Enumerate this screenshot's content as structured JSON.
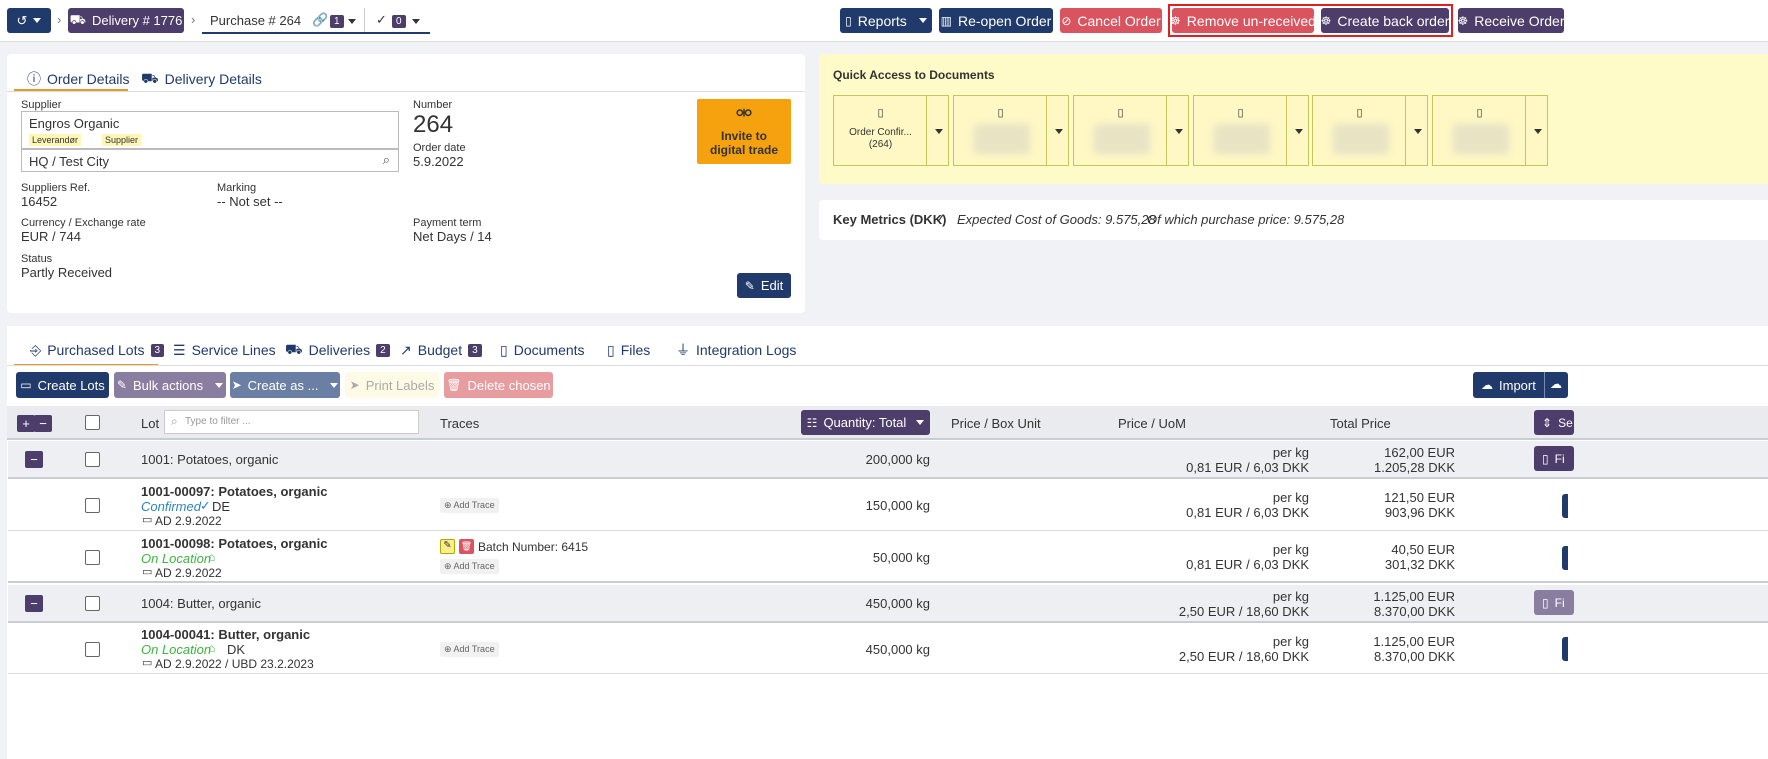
{
  "topbar": {
    "history_icon": "history-icon",
    "delivery_crumb": "Delivery # 1776",
    "purchase_crumb": "Purchase # 264",
    "links_count": "1",
    "checks_count": "0",
    "reports": "Reports",
    "reopen": "Re-open Order",
    "cancel": "Cancel Order",
    "remove_unreceived": "Remove un-received",
    "create_back_order": "Create back order",
    "receive_order": "Receive Order"
  },
  "order_card": {
    "tabs": [
      "Order Details",
      "Delivery Details"
    ],
    "supplier_label": "Supplier",
    "supplier_name": "Engros Organic",
    "supplier_tags": [
      "Leverandør",
      "Supplier"
    ],
    "location_value": "HQ / Test City",
    "number_label": "Number",
    "number_value": "264",
    "order_date_label": "Order date",
    "order_date_value": "5.9.2022",
    "invite_text": "Invite to digital trade",
    "suppliers_ref_label": "Suppliers Ref.",
    "suppliers_ref_value": "16452",
    "marking_label": "Marking",
    "marking_value": "-- Not set --",
    "currency_label": "Currency / Exchange rate",
    "currency_value": "EUR / 744",
    "payment_label": "Payment term",
    "payment_value": "Net Days / 14",
    "status_label": "Status",
    "status_value": "Partly Received",
    "edit": "Edit"
  },
  "quick_access": {
    "title": "Quick Access to Documents",
    "first_doc": "Order Confir... (264)"
  },
  "metrics": {
    "title": "Key Metrics (DKK)",
    "expected": "Expected Cost of Goods: 9.575,28",
    "purchase": "Of which purchase price: 9.575,28"
  },
  "lower_tabs": [
    {
      "label": "Purchased Lots",
      "badge": "3"
    },
    {
      "label": "Service Lines",
      "badge": ""
    },
    {
      "label": "Deliveries",
      "badge": "2"
    },
    {
      "label": "Budget",
      "badge": "3"
    },
    {
      "label": "Documents",
      "badge": ""
    },
    {
      "label": "Files",
      "badge": ""
    },
    {
      "label": "Integration Logs",
      "badge": ""
    }
  ],
  "actions": {
    "create_lots": "Create Lots",
    "bulk_actions": "Bulk actions",
    "create_as": "Create as ...",
    "print_labels": "Print Labels",
    "delete_chosen": "Delete chosen",
    "import": "Import"
  },
  "table": {
    "filter_placeholder": "Type to filter ...",
    "headers": {
      "lot": "Lot",
      "traces": "Traces",
      "quantity": "Quantity: Total",
      "price_box": "Price / Box Unit",
      "price_uom": "Price / UoM",
      "total": "Total Price"
    },
    "rows": [
      {
        "lot": "1001: Potatoes, organic",
        "qty": "200,000 kg",
        "uom1": "per kg",
        "uom2": "0,81 EUR / 6,03 DKK",
        "tot1": "162,00 EUR",
        "tot2": "1.205,28 DKK"
      },
      {
        "lot": "1001-00097: Potatoes, organic",
        "status": "Confirmed",
        "country": "DE",
        "date": "AD 2.9.2022",
        "trace": "Add Trace",
        "qty": "150,000 kg",
        "uom1": "per kg",
        "uom2": "0,81 EUR / 6,03 DKK",
        "tot1": "121,50 EUR",
        "tot2": "903,96 DKK"
      },
      {
        "lot": "1001-00098: Potatoes, organic",
        "status": "On Location",
        "date": "AD 2.9.2022",
        "batch": "Batch Number: 6415",
        "trace": "Add Trace",
        "qty": "50,000 kg",
        "uom1": "per kg",
        "uom2": "0,81 EUR / 6,03 DKK",
        "tot1": "40,50 EUR",
        "tot2": "301,32 DKK"
      },
      {
        "lot": "1004: Butter, organic",
        "qty": "450,000 kg",
        "uom1": "per kg",
        "uom2": "2,50 EUR / 18,60 DKK",
        "tot1": "1.125,00 EUR",
        "tot2": "8.370,00 DKK"
      },
      {
        "lot": "1004-00041: Butter, organic",
        "status": "On Location",
        "country": "DK",
        "date": "AD 2.9.2022 / UBD 23.2.2023",
        "trace": "Add Trace",
        "qty": "450,000 kg",
        "uom1": "per kg",
        "uom2": "2,50 EUR / 18,60 DKK",
        "tot1": "1.125,00 EUR",
        "tot2": "8.370,00 DKK"
      }
    ],
    "side_fi": "Fi",
    "side_se": "Se"
  }
}
